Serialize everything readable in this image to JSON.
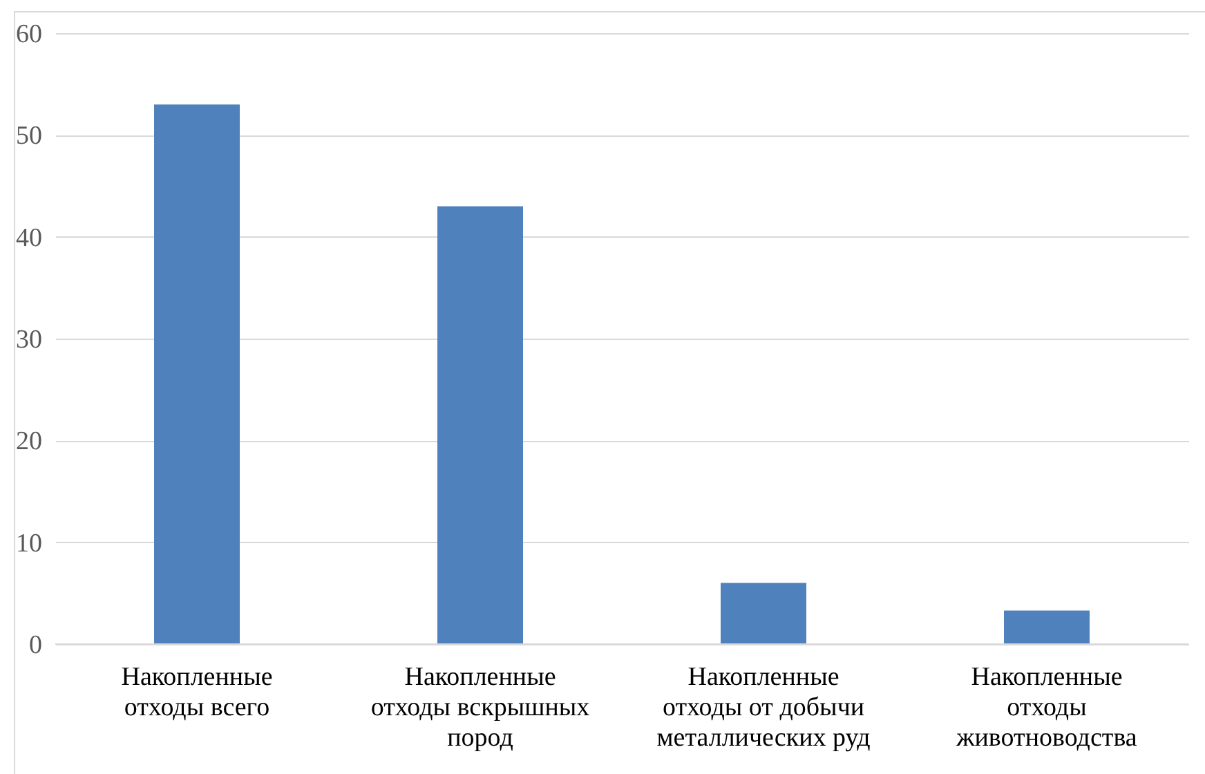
{
  "chart_data": {
    "type": "bar",
    "categories": [
      "Накопленные отходы всего",
      "Накопленные отходы вскрышных пород",
      "Накопленные отходы от добычи металлических руд",
      "Накопленные отходы животноводства"
    ],
    "values": [
      53,
      43,
      6,
      3.3
    ],
    "color": "#4f81bd",
    "ylim": [
      0,
      60
    ],
    "yticks": [
      0,
      10,
      20,
      30,
      40,
      50,
      60
    ],
    "grid": "y"
  }
}
